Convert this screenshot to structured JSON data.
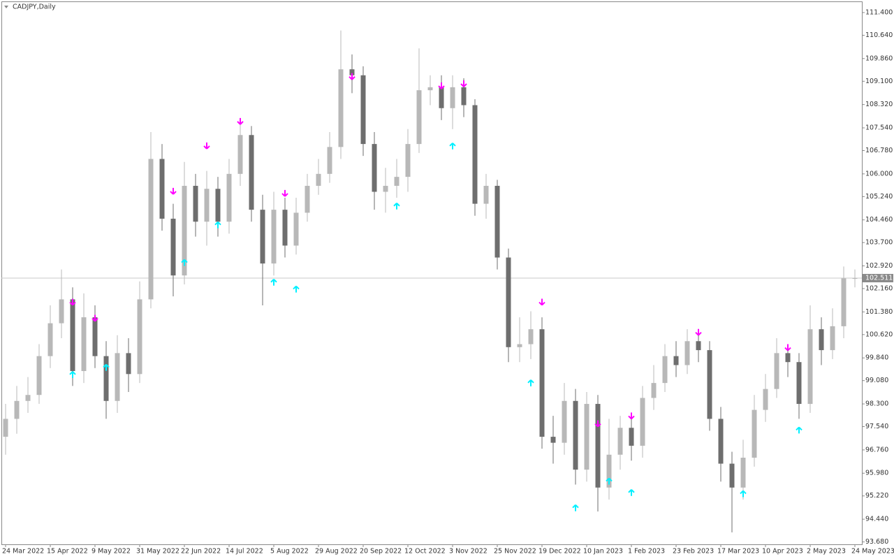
{
  "chart_data": {
    "type": "candlestick",
    "title": "CADJPY,Daily",
    "categories": [
      "24 Mar 2022",
      null,
      null,
      null,
      "15 Apr 2022",
      null,
      null,
      null,
      "9 May 2022",
      null,
      null,
      null,
      "31 May 2022",
      null,
      null,
      null,
      "22 Jun 2022",
      null,
      null,
      null,
      "14 Jul 2022",
      null,
      null,
      null,
      "5 Aug 2022",
      null,
      null,
      null,
      "29 Aug 2022",
      null,
      null,
      null,
      "20 Sep 2022",
      null,
      null,
      null,
      "12 Oct 2022",
      null,
      null,
      null,
      "3 Nov 2022",
      null,
      null,
      null,
      "25 Nov 2022",
      null,
      null,
      null,
      "19 Dec 2022",
      null,
      null,
      null,
      "10 Jan 2023",
      null,
      null,
      null,
      "1 Feb 2023",
      null,
      null,
      null,
      "23 Feb 2023",
      null,
      null,
      null,
      "17 Mar 2023",
      null,
      null,
      null,
      "10 Apr 2023",
      null,
      null,
      null,
      "2 May 2023",
      null,
      null,
      null,
      "24 May 2023"
    ],
    "open": [
      97.2,
      97.8,
      98.4,
      98.6,
      99.9,
      101.0,
      101.8,
      99.4,
      101.2,
      99.9,
      98.4,
      100.0,
      99.3,
      101.8,
      106.5,
      104.5,
      102.6,
      105.6,
      104.4,
      105.5,
      104.4,
      106.0,
      107.3,
      104.8,
      103.0,
      104.8,
      103.6,
      104.7,
      105.6,
      106.0,
      106.9,
      109.5,
      109.3,
      107.0,
      105.4,
      105.6,
      105.9,
      107.0,
      108.8,
      108.9,
      108.2,
      108.9,
      108.3,
      105.0,
      105.6,
      103.2,
      100.2,
      100.3,
      100.8,
      97.2,
      97.0,
      98.4,
      96.1,
      98.3,
      95.5,
      96.6,
      97.5,
      96.9,
      98.5,
      99.0,
      99.9,
      99.6,
      100.4,
      100.1,
      97.8,
      96.3,
      95.5,
      96.5,
      98.1,
      98.8,
      100.0,
      99.7,
      98.3,
      100.8,
      100.1,
      100.9,
      102.5
    ],
    "high": [
      98.3,
      98.9,
      99.2,
      100.3,
      101.6,
      102.8,
      102.2,
      102.0,
      101.6,
      100.4,
      100.6,
      100.5,
      102.4,
      107.4,
      107.0,
      105.0,
      106.4,
      106.0,
      106.1,
      105.9,
      106.5,
      107.8,
      107.6,
      105.3,
      105.4,
      105.2,
      105.2,
      106.0,
      106.5,
      107.4,
      110.8,
      110.0,
      109.6,
      107.4,
      106.2,
      106.5,
      107.5,
      110.2,
      109.3,
      109.3,
      109.3,
      109.2,
      108.5,
      106.0,
      105.8,
      103.5,
      101.2,
      101.4,
      101.2,
      97.9,
      99.0,
      98.8,
      98.7,
      98.6,
      97.8,
      97.9,
      97.9,
      98.9,
      99.6,
      100.3,
      100.4,
      100.8,
      100.7,
      100.4,
      98.2,
      96.7,
      97.1,
      98.6,
      99.3,
      100.5,
      100.3,
      100.0,
      101.6,
      101.2,
      101.5,
      102.9,
      102.8
    ],
    "low": [
      96.6,
      97.3,
      98.0,
      98.3,
      99.5,
      100.5,
      98.9,
      99.0,
      99.5,
      97.8,
      98.0,
      98.7,
      99.0,
      101.5,
      104.1,
      101.9,
      102.3,
      103.9,
      103.6,
      103.9,
      104.0,
      105.6,
      104.4,
      101.6,
      102.6,
      103.2,
      103.3,
      104.4,
      105.3,
      105.7,
      106.5,
      108.7,
      106.6,
      104.8,
      104.7,
      105.2,
      105.4,
      106.7,
      108.3,
      107.8,
      107.5,
      107.9,
      104.6,
      104.5,
      102.8,
      99.7,
      99.7,
      99.8,
      96.8,
      96.3,
      96.6,
      95.6,
      95.7,
      94.7,
      95.1,
      96.1,
      96.4,
      96.5,
      98.1,
      98.7,
      99.2,
      99.3,
      99.7,
      97.4,
      95.7,
      94.0,
      95.1,
      96.2,
      97.7,
      98.5,
      99.2,
      97.8,
      98.0,
      99.6,
      99.8,
      100.5,
      102.2
    ],
    "close": [
      97.8,
      98.4,
      98.6,
      99.9,
      101.0,
      101.8,
      99.4,
      101.2,
      99.9,
      98.4,
      100.0,
      99.3,
      101.8,
      106.5,
      104.5,
      102.6,
      105.6,
      104.4,
      105.5,
      104.4,
      106.0,
      107.3,
      104.8,
      103.0,
      104.8,
      103.6,
      104.7,
      105.6,
      106.0,
      106.9,
      109.5,
      109.3,
      107.0,
      105.4,
      105.6,
      105.9,
      107.0,
      108.8,
      108.9,
      108.2,
      108.9,
      108.3,
      105.0,
      105.6,
      103.2,
      100.2,
      100.3,
      100.8,
      97.2,
      97.0,
      98.4,
      96.1,
      98.3,
      95.5,
      96.6,
      97.5,
      96.9,
      98.5,
      99.0,
      99.9,
      99.6,
      100.4,
      100.1,
      97.8,
      96.3,
      95.5,
      96.5,
      98.1,
      98.8,
      100.0,
      99.7,
      98.3,
      100.8,
      100.1,
      100.9,
      102.5,
      102.51
    ],
    "up_color": "#b8b8b8",
    "down_color": "#6e6e6e",
    "down_arrows": {
      "color": "#ff00ff",
      "values": [
        null,
        null,
        null,
        null,
        null,
        null,
        101.61,
        null,
        101.07,
        null,
        null,
        null,
        null,
        null,
        null,
        105.32,
        null,
        null,
        106.84,
        null,
        null,
        107.66,
        null,
        null,
        null,
        105.25,
        null,
        null,
        null,
        null,
        null,
        109.16,
        null,
        null,
        null,
        null,
        null,
        null,
        null,
        108.85,
        null,
        108.92,
        null,
        null,
        null,
        null,
        null,
        null,
        101.61,
        null,
        null,
        null,
        null,
        97.54,
        null,
        null,
        97.8,
        null,
        null,
        null,
        null,
        null,
        100.6,
        null,
        null,
        null,
        null,
        null,
        null,
        null,
        100.09,
        null,
        null,
        null,
        null,
        null,
        null
      ]
    },
    "up_arrows": {
      "color": "#00f0ff",
      "values": [
        null,
        null,
        null,
        null,
        null,
        null,
        99.38,
        null,
        null,
        99.62,
        null,
        null,
        null,
        null,
        null,
        null,
        103.13,
        null,
        null,
        104.39,
        null,
        null,
        null,
        null,
        102.47,
        null,
        102.24,
        null,
        null,
        null,
        null,
        null,
        null,
        null,
        null,
        105.02,
        null,
        null,
        null,
        null,
        107.03,
        null,
        null,
        null,
        null,
        null,
        null,
        99.1,
        null,
        null,
        null,
        94.92,
        null,
        null,
        95.81,
        null,
        95.43,
        null,
        null,
        null,
        null,
        null,
        null,
        null,
        null,
        null,
        95.39,
        null,
        null,
        null,
        null,
        97.52,
        null,
        null,
        null,
        null,
        null
      ]
    },
    "last_price": 102.511,
    "ylim": [
      93.6,
      111.75
    ],
    "yticks": [
      {
        "value": 93.68,
        "label": "93.680"
      },
      {
        "value": 94.44,
        "label": "94.440"
      },
      {
        "value": 95.22,
        "label": "95.220"
      },
      {
        "value": 95.98,
        "label": "95.980"
      },
      {
        "value": 96.76,
        "label": "96.760"
      },
      {
        "value": 97.54,
        "label": "97.540"
      },
      {
        "value": 98.3,
        "label": "98.300"
      },
      {
        "value": 99.08,
        "label": "99.080"
      },
      {
        "value": 99.84,
        "label": "99.840"
      },
      {
        "value": 100.62,
        "label": "100.620"
      },
      {
        "value": 101.38,
        "label": "101.380"
      },
      {
        "value": 102.16,
        "label": "102.160"
      },
      {
        "value": 102.92,
        "label": "102.920"
      },
      {
        "value": 103.7,
        "label": "103.700"
      },
      {
        "value": 104.46,
        "label": "104.460"
      },
      {
        "value": 105.24,
        "label": "105.240"
      },
      {
        "value": 106.0,
        "label": "106.000"
      },
      {
        "value": 106.78,
        "label": "106.780"
      },
      {
        "value": 107.54,
        "label": "107.540"
      },
      {
        "value": 108.32,
        "label": "108.320"
      },
      {
        "value": 109.1,
        "label": "109.100"
      },
      {
        "value": 109.86,
        "label": "109.860"
      },
      {
        "value": 110.64,
        "label": "110.640"
      },
      {
        "value": 111.4,
        "label": "111.400"
      }
    ]
  }
}
